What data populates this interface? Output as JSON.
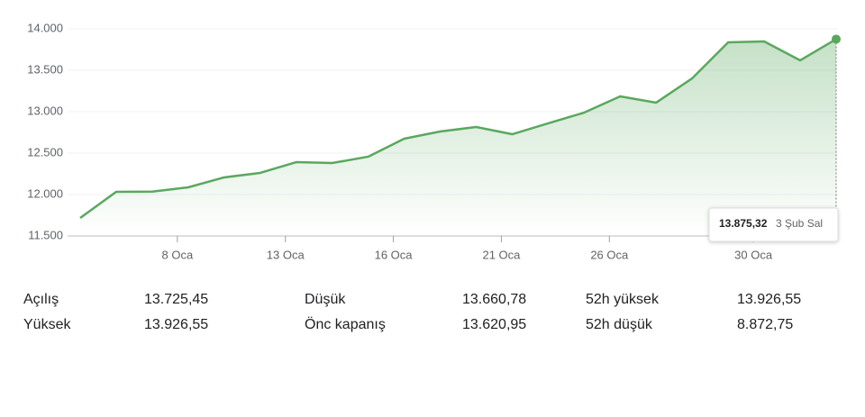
{
  "chart_data": {
    "type": "line",
    "categories": [
      null,
      null,
      null,
      "8 Oca",
      null,
      null,
      "13 Oca",
      null,
      null,
      "16 Oca",
      null,
      null,
      "21 Oca",
      null,
      null,
      "26 Oca",
      null,
      null,
      null,
      "30 Oca",
      null,
      null
    ],
    "values": [
      11717,
      12033,
      12035,
      12087,
      12207,
      12261,
      12391,
      12380,
      12457,
      12674,
      12761,
      12815,
      12728,
      12859,
      12989,
      13185,
      13109,
      13402,
      13837,
      13848,
      13620,
      13875.32
    ],
    "color": "#5aa85e",
    "ylim": [
      11500,
      14000
    ],
    "yticks": [
      {
        "value": 11500,
        "label": "11.500"
      },
      {
        "value": 12000,
        "label": "12.000"
      },
      {
        "value": 12500,
        "label": "12.500"
      },
      {
        "value": 13000,
        "label": "13.000"
      },
      {
        "value": 13500,
        "label": "13.500"
      },
      {
        "value": 14000,
        "label": "14.000"
      }
    ],
    "grid": true,
    "tooltip": {
      "value": "13.875,32",
      "date": "3 Şub Sal"
    }
  },
  "stats": [
    {
      "label": "Açılış",
      "value": "13.725,45"
    },
    {
      "label": "Düşük",
      "value": "13.660,78"
    },
    {
      "label": "52h yüksek",
      "value": "13.926,55"
    },
    {
      "label": "Yüksek",
      "value": "13.926,55"
    },
    {
      "label": "Önc kapanış",
      "value": "13.620,95"
    },
    {
      "label": "52h düşük",
      "value": "8.872,75"
    }
  ]
}
